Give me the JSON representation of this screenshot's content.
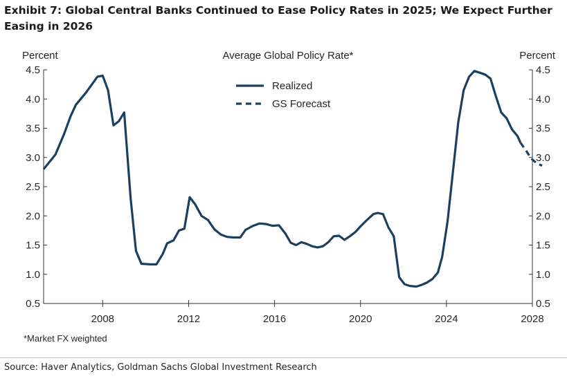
{
  "title": "Exhibit 7: Global Central Banks Continued to Ease Policy Rates in 2025; We Expect Further Easing in 2026",
  "footnote": "*Market FX weighted",
  "source": "Source: Haver Analytics, Goldman Sachs Global Investment Research",
  "chart_data": {
    "type": "line",
    "title": "Average Global Policy Rate*",
    "ylabel_left": "Percent",
    "ylabel_right": "Percent",
    "xlabel": "",
    "xlim": [
      2005.25,
      2028
    ],
    "ylim": [
      0.5,
      4.5
    ],
    "x_ticks": [
      2008,
      2012,
      2016,
      2020,
      2024,
      2028
    ],
    "y_ticks": [
      "0.5",
      "1.0",
      "1.5",
      "2.0",
      "2.5",
      "3.0",
      "3.5",
      "4.0",
      "4.5"
    ],
    "legend_position": "top-center",
    "grid": false,
    "color": "#1b3f5e",
    "series": [
      {
        "name": "Realized",
        "style": "solid",
        "points": [
          [
            2005.25,
            2.8
          ],
          [
            2005.8,
            3.05
          ],
          [
            2006.2,
            3.4
          ],
          [
            2006.5,
            3.7
          ],
          [
            2006.75,
            3.9
          ],
          [
            2007.2,
            4.1
          ],
          [
            2007.5,
            4.25
          ],
          [
            2007.75,
            4.38
          ],
          [
            2008.0,
            4.4
          ],
          [
            2008.25,
            4.15
          ],
          [
            2008.5,
            3.55
          ],
          [
            2008.75,
            3.62
          ],
          [
            2009.0,
            3.77
          ],
          [
            2009.3,
            2.3
          ],
          [
            2009.55,
            1.4
          ],
          [
            2009.8,
            1.18
          ],
          [
            2010.2,
            1.17
          ],
          [
            2010.5,
            1.17
          ],
          [
            2010.8,
            1.35
          ],
          [
            2011.0,
            1.53
          ],
          [
            2011.3,
            1.58
          ],
          [
            2011.55,
            1.75
          ],
          [
            2011.8,
            1.78
          ],
          [
            2012.05,
            2.32
          ],
          [
            2012.3,
            2.2
          ],
          [
            2012.6,
            2.0
          ],
          [
            2012.9,
            1.93
          ],
          [
            2013.2,
            1.77
          ],
          [
            2013.5,
            1.68
          ],
          [
            2013.8,
            1.64
          ],
          [
            2014.1,
            1.63
          ],
          [
            2014.4,
            1.63
          ],
          [
            2014.65,
            1.76
          ],
          [
            2015.0,
            1.83
          ],
          [
            2015.3,
            1.87
          ],
          [
            2015.6,
            1.86
          ],
          [
            2015.9,
            1.83
          ],
          [
            2016.2,
            1.84
          ],
          [
            2016.5,
            1.7
          ],
          [
            2016.75,
            1.54
          ],
          [
            2017.0,
            1.5
          ],
          [
            2017.25,
            1.55
          ],
          [
            2017.5,
            1.52
          ],
          [
            2017.75,
            1.48
          ],
          [
            2018.0,
            1.46
          ],
          [
            2018.25,
            1.48
          ],
          [
            2018.5,
            1.55
          ],
          [
            2018.75,
            1.65
          ],
          [
            2019.0,
            1.66
          ],
          [
            2019.25,
            1.59
          ],
          [
            2019.5,
            1.65
          ],
          [
            2019.75,
            1.72
          ],
          [
            2020.0,
            1.82
          ],
          [
            2020.3,
            1.93
          ],
          [
            2020.6,
            2.03
          ],
          [
            2020.8,
            2.05
          ],
          [
            2021.05,
            2.03
          ],
          [
            2021.3,
            1.8
          ],
          [
            2021.55,
            1.65
          ],
          [
            2021.8,
            0.95
          ],
          [
            2022.05,
            0.83
          ],
          [
            2022.3,
            0.8
          ],
          [
            2022.6,
            0.79
          ],
          [
            2022.85,
            0.82
          ],
          [
            2023.1,
            0.86
          ],
          [
            2023.35,
            0.92
          ],
          [
            2023.6,
            1.03
          ],
          [
            2023.8,
            1.3
          ],
          [
            2024.05,
            1.9
          ],
          [
            2024.3,
            2.75
          ],
          [
            2024.55,
            3.6
          ],
          [
            2024.8,
            4.15
          ],
          [
            2025.05,
            4.38
          ],
          [
            2025.3,
            4.48
          ],
          [
            2025.55,
            4.45
          ],
          [
            2025.8,
            4.42
          ],
          [
            2026.05,
            4.35
          ],
          [
            2026.3,
            4.05
          ],
          [
            2026.55,
            3.77
          ],
          [
            2026.8,
            3.67
          ],
          [
            2027.05,
            3.48
          ],
          [
            2027.3,
            3.37
          ],
          [
            2027.45,
            3.25
          ]
        ]
      },
      {
        "name": "GS Forecast",
        "style": "dashed",
        "points": [
          [
            2027.45,
            3.25
          ],
          [
            2027.7,
            3.12
          ],
          [
            2027.95,
            2.98
          ],
          [
            2028.2,
            2.9
          ],
          [
            2028.45,
            2.86
          ]
        ]
      }
    ]
  }
}
